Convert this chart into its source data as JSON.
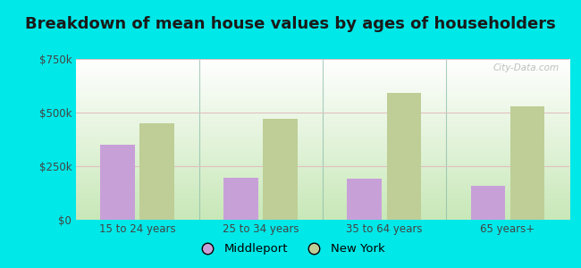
{
  "title": "Breakdown of mean house values by ages of householders",
  "categories": [
    "15 to 24 years",
    "25 to 34 years",
    "35 to 64 years",
    "65 years+"
  ],
  "middleport_values": [
    350000,
    195000,
    190000,
    160000
  ],
  "newyork_values": [
    450000,
    470000,
    590000,
    530000
  ],
  "middleport_color": "#c8a0d8",
  "newyork_color": "#bece96",
  "background_color": "#00e8e8",
  "ylim": [
    0,
    750000
  ],
  "yticks": [
    0,
    250000,
    500000,
    750000
  ],
  "ytick_labels": [
    "$0",
    "$250k",
    "$500k",
    "$750k"
  ],
  "legend_labels": [
    "Middleport",
    "New York"
  ],
  "watermark": "City-Data.com",
  "bar_width": 0.28,
  "title_fontsize": 13,
  "tick_fontsize": 8.5,
  "legend_fontsize": 9.5
}
